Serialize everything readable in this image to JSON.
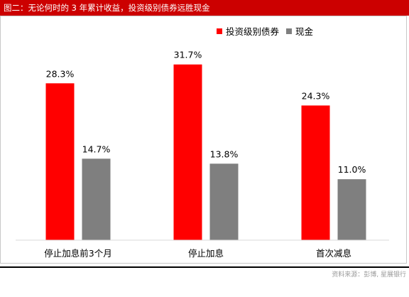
{
  "header": {
    "title": "图二：无论何时的 3 年累计收益，投资级别债券远胜现金"
  },
  "footer": {
    "source": "资料来源：彭博, 星展银行"
  },
  "colors": {
    "header_bg": "#cc0000",
    "series_1": "#ff0000",
    "series_2": "#7f7f7f"
  },
  "chart_data": {
    "type": "bar",
    "title": "",
    "xlabel": "",
    "ylabel": "",
    "ylim": [
      0,
      35
    ],
    "grid": false,
    "legend": "top-right",
    "categories": [
      "停止加息前3个月",
      "停止加息",
      "首次减息"
    ],
    "series": [
      {
        "name": "投资级别债券",
        "values": [
          28.3,
          31.7,
          24.3
        ],
        "labels": [
          "28.3%",
          "31.7%",
          "24.3%"
        ]
      },
      {
        "name": "现金",
        "values": [
          14.7,
          13.8,
          11.0
        ],
        "labels": [
          "14.7%",
          "13.8%",
          "11.0%"
        ]
      }
    ]
  }
}
